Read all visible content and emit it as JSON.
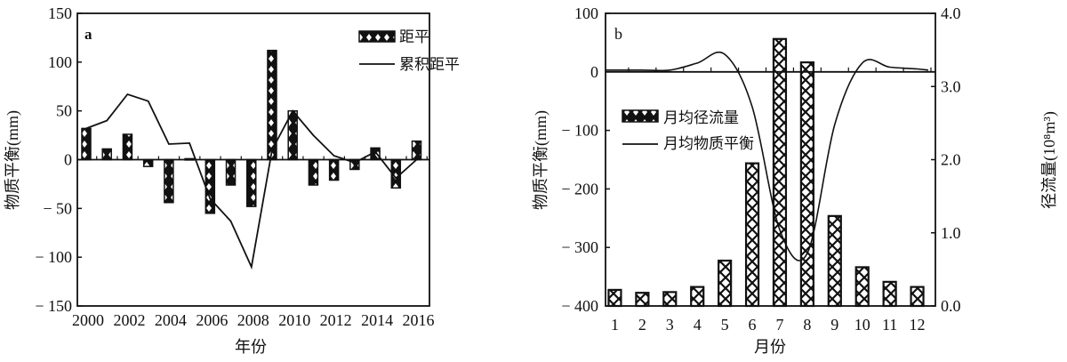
{
  "chart_data": [
    {
      "panel": "a",
      "type": "bar",
      "title": "",
      "xlabel": "年份",
      "ylabel": "物质平衡(mm)",
      "ylim": [
        -150,
        150
      ],
      "yticks": [
        150,
        100,
        50,
        0,
        -50,
        -100,
        -150
      ],
      "xtick_labels": [
        "2000",
        "2002",
        "2004",
        "2006",
        "2008",
        "2010",
        "2012",
        "2014",
        "2016"
      ],
      "categories": [
        "2000",
        "2001",
        "2002",
        "2003",
        "2004",
        "2005",
        "2006",
        "2007",
        "2008",
        "2009",
        "2010",
        "2011",
        "2012",
        "2013",
        "2014",
        "2015",
        "2016"
      ],
      "series": [
        {
          "name": "距平",
          "type": "bar",
          "values": [
            32,
            11,
            26,
            -7,
            -44,
            1,
            -55,
            -26,
            -48,
            112,
            50,
            -26,
            -21,
            -10,
            12,
            -29,
            19
          ]
        },
        {
          "name": "累积距平",
          "type": "line",
          "values": [
            32,
            40,
            67,
            60,
            16,
            17,
            -40,
            -63,
            -110,
            10,
            50,
            25,
            4,
            -3,
            8,
            -19,
            0
          ]
        }
      ],
      "legend": [
        "距平",
        "累积距平"
      ],
      "legend_position": "upper right",
      "grid": false
    },
    {
      "panel": "b",
      "type": "bar",
      "title": "",
      "xlabel": "月份",
      "ylabel": "物质平衡(mm)",
      "ylabel_right": "径流量(10⁸m³)",
      "ylim": [
        -400,
        100
      ],
      "ylim_right": [
        0.0,
        4.0
      ],
      "yticks": [
        100,
        0,
        -100,
        -200,
        -300,
        -400
      ],
      "yticks_right": [
        "4.0",
        "3.0",
        "2.0",
        "1.0",
        "0.0"
      ],
      "categories": [
        "1",
        "2",
        "3",
        "4",
        "5",
        "6",
        "7",
        "8",
        "9",
        "10",
        "11",
        "12"
      ],
      "series": [
        {
          "name": "月均径流量",
          "type": "bar",
          "axis": "right",
          "values": [
            0.22,
            0.18,
            0.19,
            0.26,
            0.62,
            1.95,
            3.65,
            3.33,
            1.23,
            0.53,
            0.33,
            0.26
          ]
        },
        {
          "name": "月均物质平衡",
          "type": "line",
          "axis": "left",
          "values": [
            3,
            3,
            3,
            15,
            30,
            -60,
            -270,
            -310,
            -90,
            15,
            8,
            5
          ]
        }
      ],
      "legend": [
        "月均径流量",
        "月均物质平衡"
      ],
      "legend_position": "center left",
      "grid": false
    }
  ],
  "panel_a": {
    "label": "a",
    "ylabel": "物质平衡(mm)",
    "xlabel": "年份",
    "legend_bar": "距平",
    "legend_line": "累积距平"
  },
  "panel_b": {
    "label": "b",
    "ylabel": "物质平衡(mm)",
    "ylabel_right": "径流量(10⁸m³)",
    "xlabel": "月份",
    "legend_bar": "月均径流量",
    "legend_line": "月均物质平衡"
  }
}
